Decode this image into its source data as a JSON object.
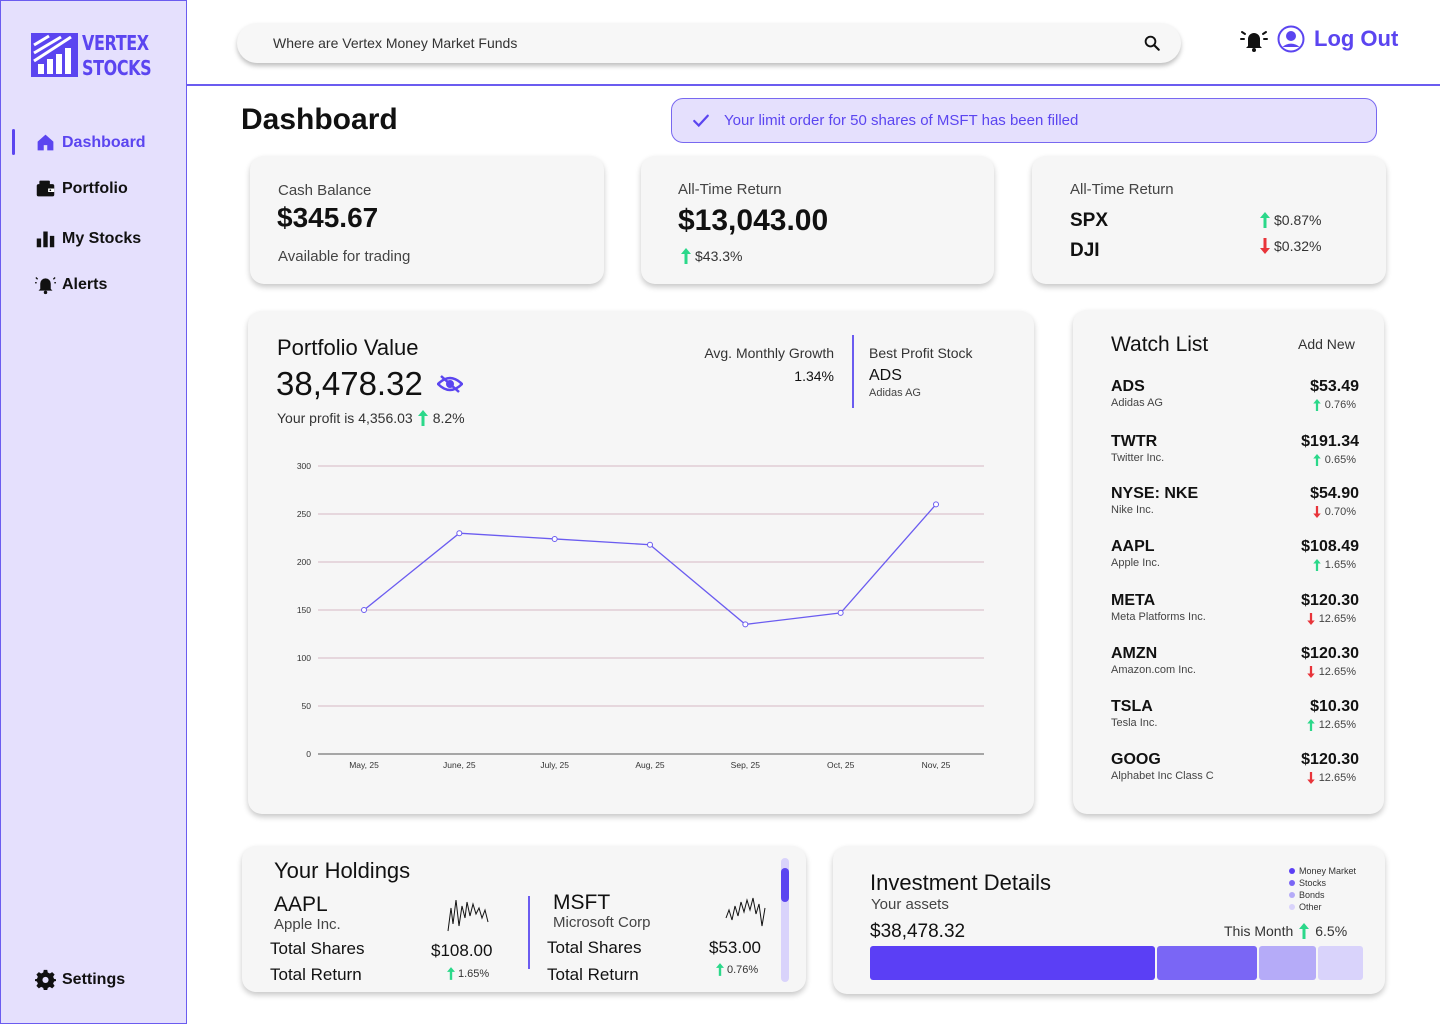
{
  "brand": {
    "line1": "VERTEX",
    "line2": "STOCKS",
    "color": "#5b45f0"
  },
  "sidebar": {
    "items": [
      {
        "label": "Dashboard",
        "icon": "home-icon",
        "active": true
      },
      {
        "label": "Portfolio",
        "icon": "wallet-icon"
      },
      {
        "label": "My Stocks",
        "icon": "bar-chart-icon"
      },
      {
        "label": "Alerts",
        "icon": "bell-icon"
      }
    ],
    "settings_label": "Settings"
  },
  "header": {
    "search_value": "Where are Vertex Money Market Funds",
    "logout_label": "Log Out"
  },
  "page": {
    "title": "Dashboard",
    "notice": "Your limit order for 50 shares of MSFT has been filled"
  },
  "cash": {
    "label": "Cash Balance",
    "value": "$345.67",
    "sub": "Available for trading"
  },
  "all_time": {
    "label": "All-Time Return",
    "value": "$13,043.00",
    "change": "$43.3%"
  },
  "indices": {
    "label": "All-Time Return",
    "rows": [
      {
        "name": "SPX",
        "change": "$0.87%",
        "direction": "up"
      },
      {
        "name": "DJI",
        "change": "$0.32%",
        "direction": "down"
      }
    ]
  },
  "portfolio": {
    "title": "Portfolio Value",
    "value": "38,478.32",
    "profit_text": "Your profit is 4,356.03",
    "profit_pct": "8.2%",
    "avg_growth_label": "Avg. Monthly Growth",
    "avg_growth_value": "1.34%",
    "best_label": "Best Profit Stock",
    "best_symbol": "ADS",
    "best_name": "Adidas AG"
  },
  "chart_data": {
    "type": "line",
    "categories": [
      "May, 25",
      "June, 25",
      "July, 25",
      "Aug, 25",
      "Sep, 25",
      "Oct, 25",
      "Nov, 25"
    ],
    "values": [
      150,
      230,
      224,
      218,
      135,
      147,
      260
    ],
    "y_ticks": [
      "0",
      "50",
      "100",
      "150",
      "200",
      "250",
      "300"
    ],
    "ylim": [
      0,
      300
    ],
    "grid": true,
    "line_color": "#6b5cf0",
    "grid_color": "#d6b8c4"
  },
  "watchlist": {
    "title": "Watch List",
    "add_label": "Add New",
    "rows": [
      {
        "symbol": "ADS",
        "name": "Adidas AG",
        "price": "$53.49",
        "change": "0.76%",
        "direction": "up"
      },
      {
        "symbol": "TWTR",
        "name": "Twitter Inc.",
        "price": "$191.34",
        "change": "0.65%",
        "direction": "up"
      },
      {
        "symbol": "NYSE: NKE",
        "name": "Nike Inc.",
        "price": "$54.90",
        "change": "0.70%",
        "direction": "down"
      },
      {
        "symbol": "AAPL",
        "name": "Apple Inc.",
        "price": "$108.49",
        "change": "1.65%",
        "direction": "up"
      },
      {
        "symbol": "META",
        "name": "Meta Platforms Inc.",
        "price": "$120.30",
        "change": "12.65%",
        "direction": "down"
      },
      {
        "symbol": "AMZN",
        "name": "Amazon.com Inc.",
        "price": "$120.30",
        "change": "12.65%",
        "direction": "down"
      },
      {
        "symbol": "TSLA",
        "name": "Tesla Inc.",
        "price": "$10.30",
        "change": "12.65%",
        "direction": "up"
      },
      {
        "symbol": "GOOG",
        "name": "Alphabet Inc Class C",
        "price": "$120.30",
        "change": "12.65%",
        "direction": "down"
      }
    ]
  },
  "holdings": {
    "title": "Your Holdings",
    "items": [
      {
        "symbol": "AAPL",
        "name": "Apple Inc.",
        "shares_label": "Total Shares",
        "shares_value": "$108.00",
        "return_label": "Total Return",
        "return_value": "1.65%"
      },
      {
        "symbol": "MSFT",
        "name": "Microsoft Corp",
        "shares_label": "Total Shares",
        "shares_value": "$53.00",
        "return_label": "Total Return",
        "return_value": "0.76%"
      }
    ]
  },
  "investment": {
    "title": "Investment Details",
    "subtitle": "Your assets",
    "value": "$38,478.32",
    "period_label": "This Month",
    "period_change": "6.5%",
    "legend": [
      {
        "label": "Money Market",
        "color": "#5b3ff5"
      },
      {
        "label": "Stocks",
        "color": "#7a66f5"
      },
      {
        "label": "Bonds",
        "color": "#b5abf8"
      },
      {
        "label": "Other",
        "color": "#d9d3fb"
      }
    ],
    "allocation": [
      0.58,
      0.205,
      0.12,
      0.095
    ]
  }
}
